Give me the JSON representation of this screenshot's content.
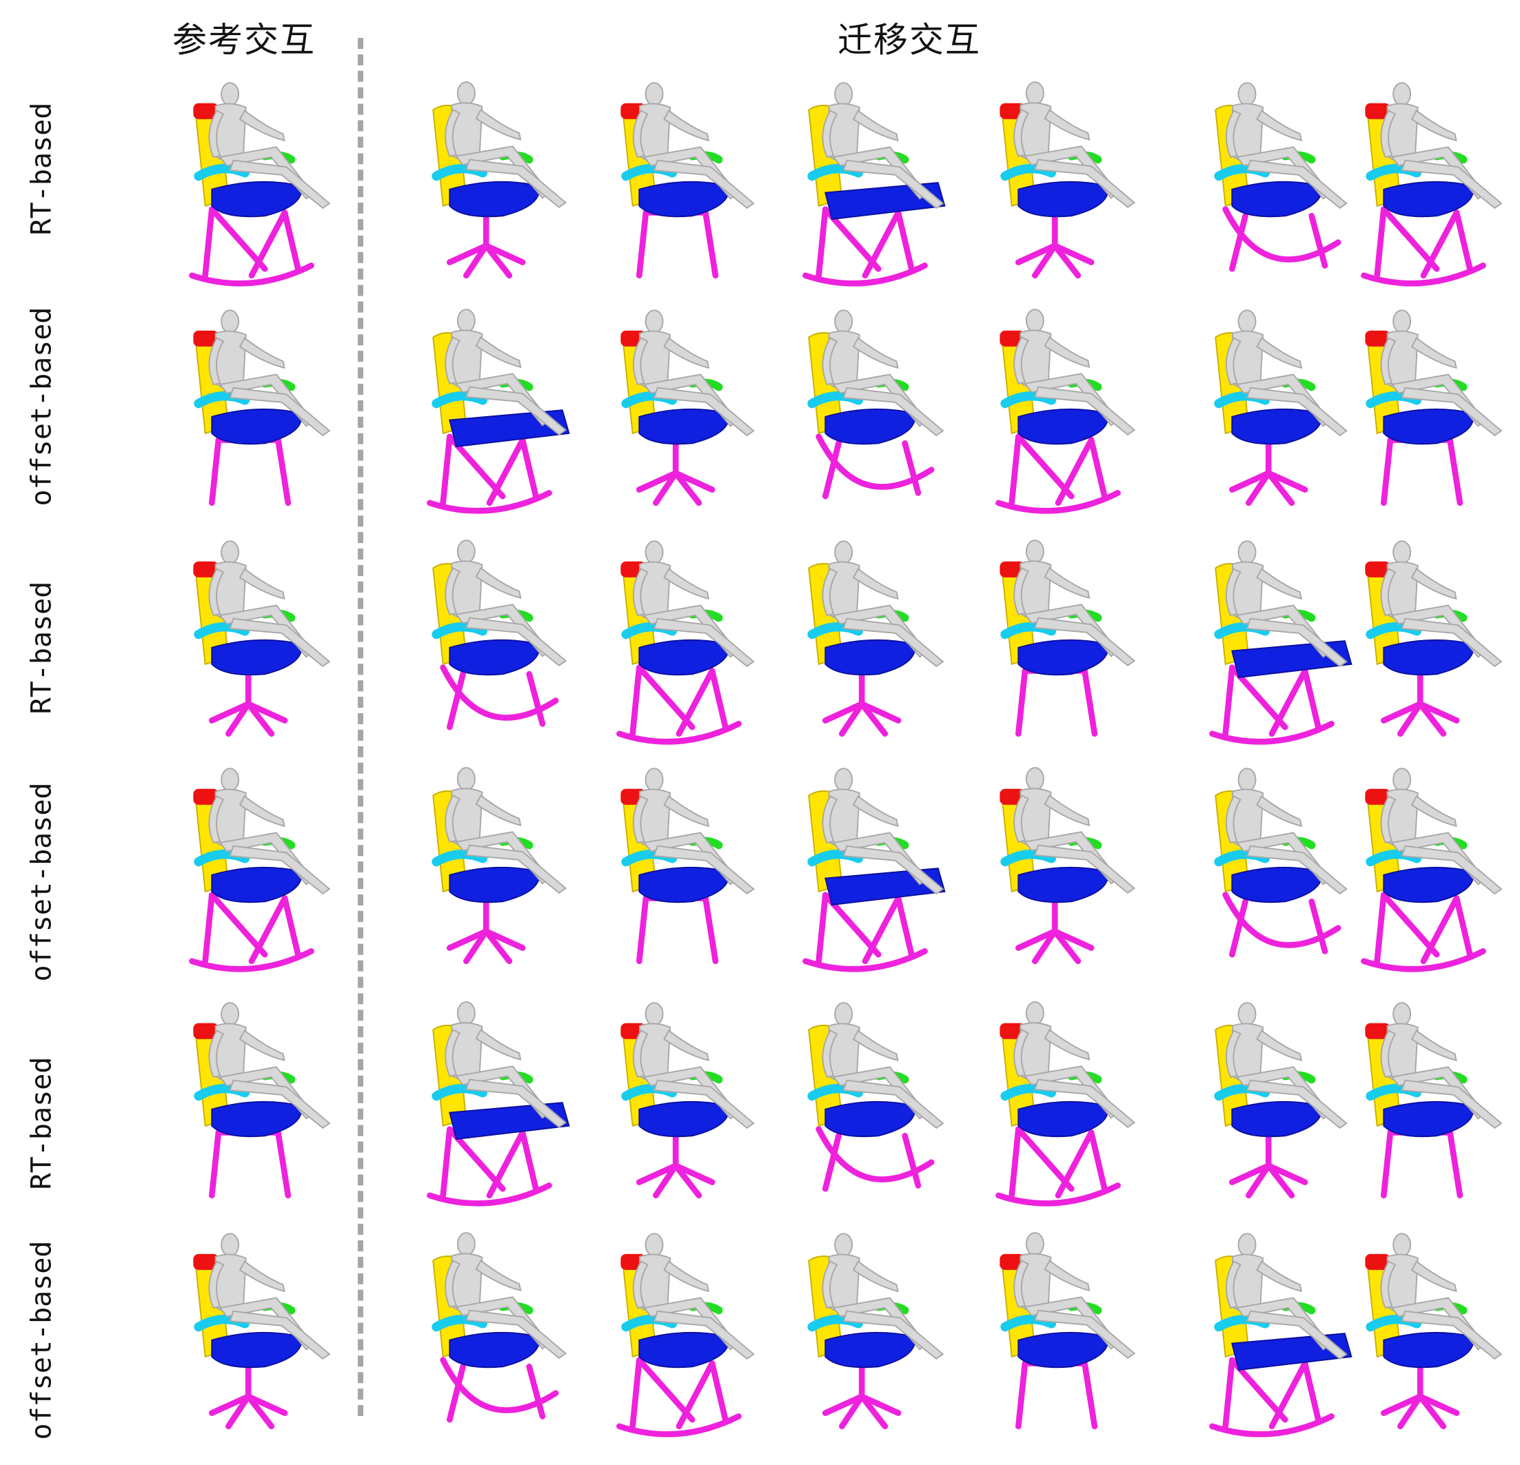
{
  "headers": {
    "reference": "参考交互",
    "transfer": "迁移交互"
  },
  "rows": [
    {
      "label": "RT-based"
    },
    {
      "label": "offset-based"
    },
    {
      "label": "RT-based"
    },
    {
      "label": "offset-based"
    },
    {
      "label": "RT-based"
    },
    {
      "label": "offset-based"
    }
  ],
  "colors": {
    "back": "#ffe500",
    "seat": "#1020e0",
    "base": "#ee22dd",
    "arm": "#18ccee",
    "armR": "#22dd22",
    "head": "#ee1111",
    "body": "#d8d8d8",
    "bodyEdge": "#a8a8a8"
  }
}
